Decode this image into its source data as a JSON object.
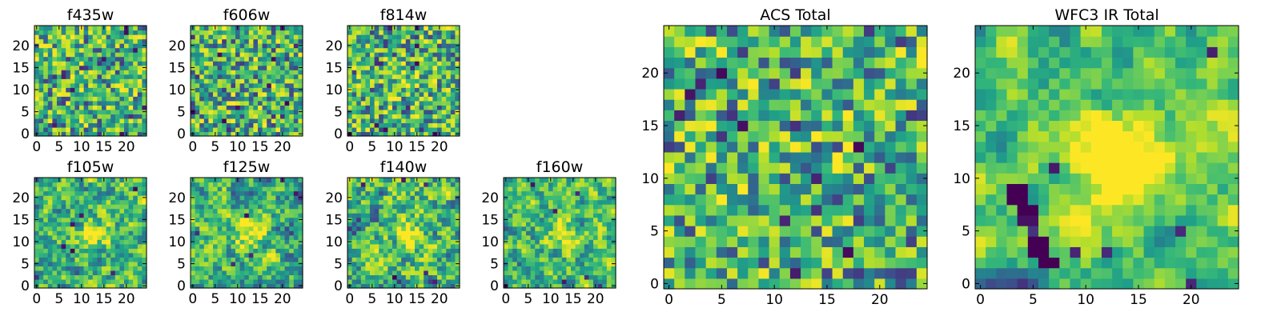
{
  "chart_data": [
    {
      "type": "heatmap",
      "title": "f435w",
      "colormap": "viridis",
      "grid": false,
      "x_ticks": [
        "0",
        "5",
        "10",
        "15",
        "20"
      ],
      "y_ticks": [
        "0",
        "5",
        "10",
        "15",
        "20"
      ],
      "xlim": [
        -0.5,
        24.5
      ],
      "ylim": [
        -0.5,
        24.5
      ],
      "size": 25,
      "texture": "random noise"
    },
    {
      "type": "heatmap",
      "title": "f606w",
      "colormap": "viridis",
      "grid": false,
      "x_ticks": [
        "0",
        "5",
        "10",
        "15",
        "20"
      ],
      "y_ticks": [
        "0",
        "5",
        "10",
        "15",
        "20"
      ],
      "xlim": [
        -0.5,
        24.5
      ],
      "ylim": [
        -0.5,
        24.5
      ],
      "size": 25,
      "texture": "random noise"
    },
    {
      "type": "heatmap",
      "title": "f814w",
      "colormap": "viridis",
      "grid": false,
      "x_ticks": [
        "0",
        "5",
        "10",
        "15",
        "20"
      ],
      "y_ticks": [
        "0",
        "5",
        "10",
        "15",
        "20"
      ],
      "xlim": [
        -0.5,
        24.5
      ],
      "ylim": [
        -0.5,
        24.5
      ],
      "size": 25,
      "texture": "random noise with faint central source"
    },
    {
      "type": "heatmap",
      "title": "f105w",
      "colormap": "viridis",
      "grid": false,
      "x_ticks": [
        "0",
        "5",
        "10",
        "15",
        "20"
      ],
      "y_ticks": [
        "0",
        "5",
        "10",
        "15",
        "20"
      ],
      "xlim": [
        -0.5,
        24.5
      ],
      "ylim": [
        -0.5,
        24.5
      ],
      "size": 25,
      "texture": "smooth with central source"
    },
    {
      "type": "heatmap",
      "title": "f125w",
      "colormap": "viridis",
      "grid": false,
      "x_ticks": [
        "0",
        "5",
        "10",
        "15",
        "20"
      ],
      "y_ticks": [
        "0",
        "5",
        "10",
        "15",
        "20"
      ],
      "xlim": [
        -0.5,
        24.5
      ],
      "ylim": [
        -0.5,
        24.5
      ],
      "size": 25,
      "texture": "smooth with central source"
    },
    {
      "type": "heatmap",
      "title": "f140w",
      "colormap": "viridis",
      "grid": false,
      "x_ticks": [
        "0",
        "5",
        "10",
        "15",
        "20"
      ],
      "y_ticks": [
        "0",
        "5",
        "10",
        "15",
        "20"
      ],
      "xlim": [
        -0.5,
        24.5
      ],
      "ylim": [
        -0.5,
        24.5
      ],
      "size": 25,
      "texture": "smooth with central source"
    },
    {
      "type": "heatmap",
      "title": "f160w",
      "colormap": "viridis",
      "grid": false,
      "x_ticks": [
        "0",
        "5",
        "10",
        "15",
        "20"
      ],
      "y_ticks": [
        "0",
        "5",
        "10",
        "15",
        "20"
      ],
      "xlim": [
        -0.5,
        24.5
      ],
      "ylim": [
        -0.5,
        24.5
      ],
      "size": 25,
      "texture": "smooth with central source"
    },
    {
      "type": "heatmap",
      "title": "ACS Total",
      "colormap": "viridis",
      "grid": false,
      "x_ticks": [
        "0",
        "5",
        "10",
        "15",
        "20"
      ],
      "y_ticks": [
        "0",
        "5",
        "10",
        "15",
        "20"
      ],
      "xlim": [
        -0.5,
        24.5
      ],
      "ylim": [
        -0.5,
        24.5
      ],
      "size": 25,
      "texture": "random noise"
    },
    {
      "type": "heatmap",
      "title": "WFC3 IR Total",
      "colormap": "viridis",
      "grid": false,
      "x_ticks": [
        "0",
        "5",
        "10",
        "15",
        "20"
      ],
      "y_ticks": [
        "0",
        "5",
        "10",
        "15",
        "20"
      ],
      "xlim": [
        -0.5,
        24.5
      ],
      "ylim": [
        -0.5,
        24.5
      ],
      "size": 25,
      "texture": "smooth with central source and dark diagonal streak"
    }
  ]
}
